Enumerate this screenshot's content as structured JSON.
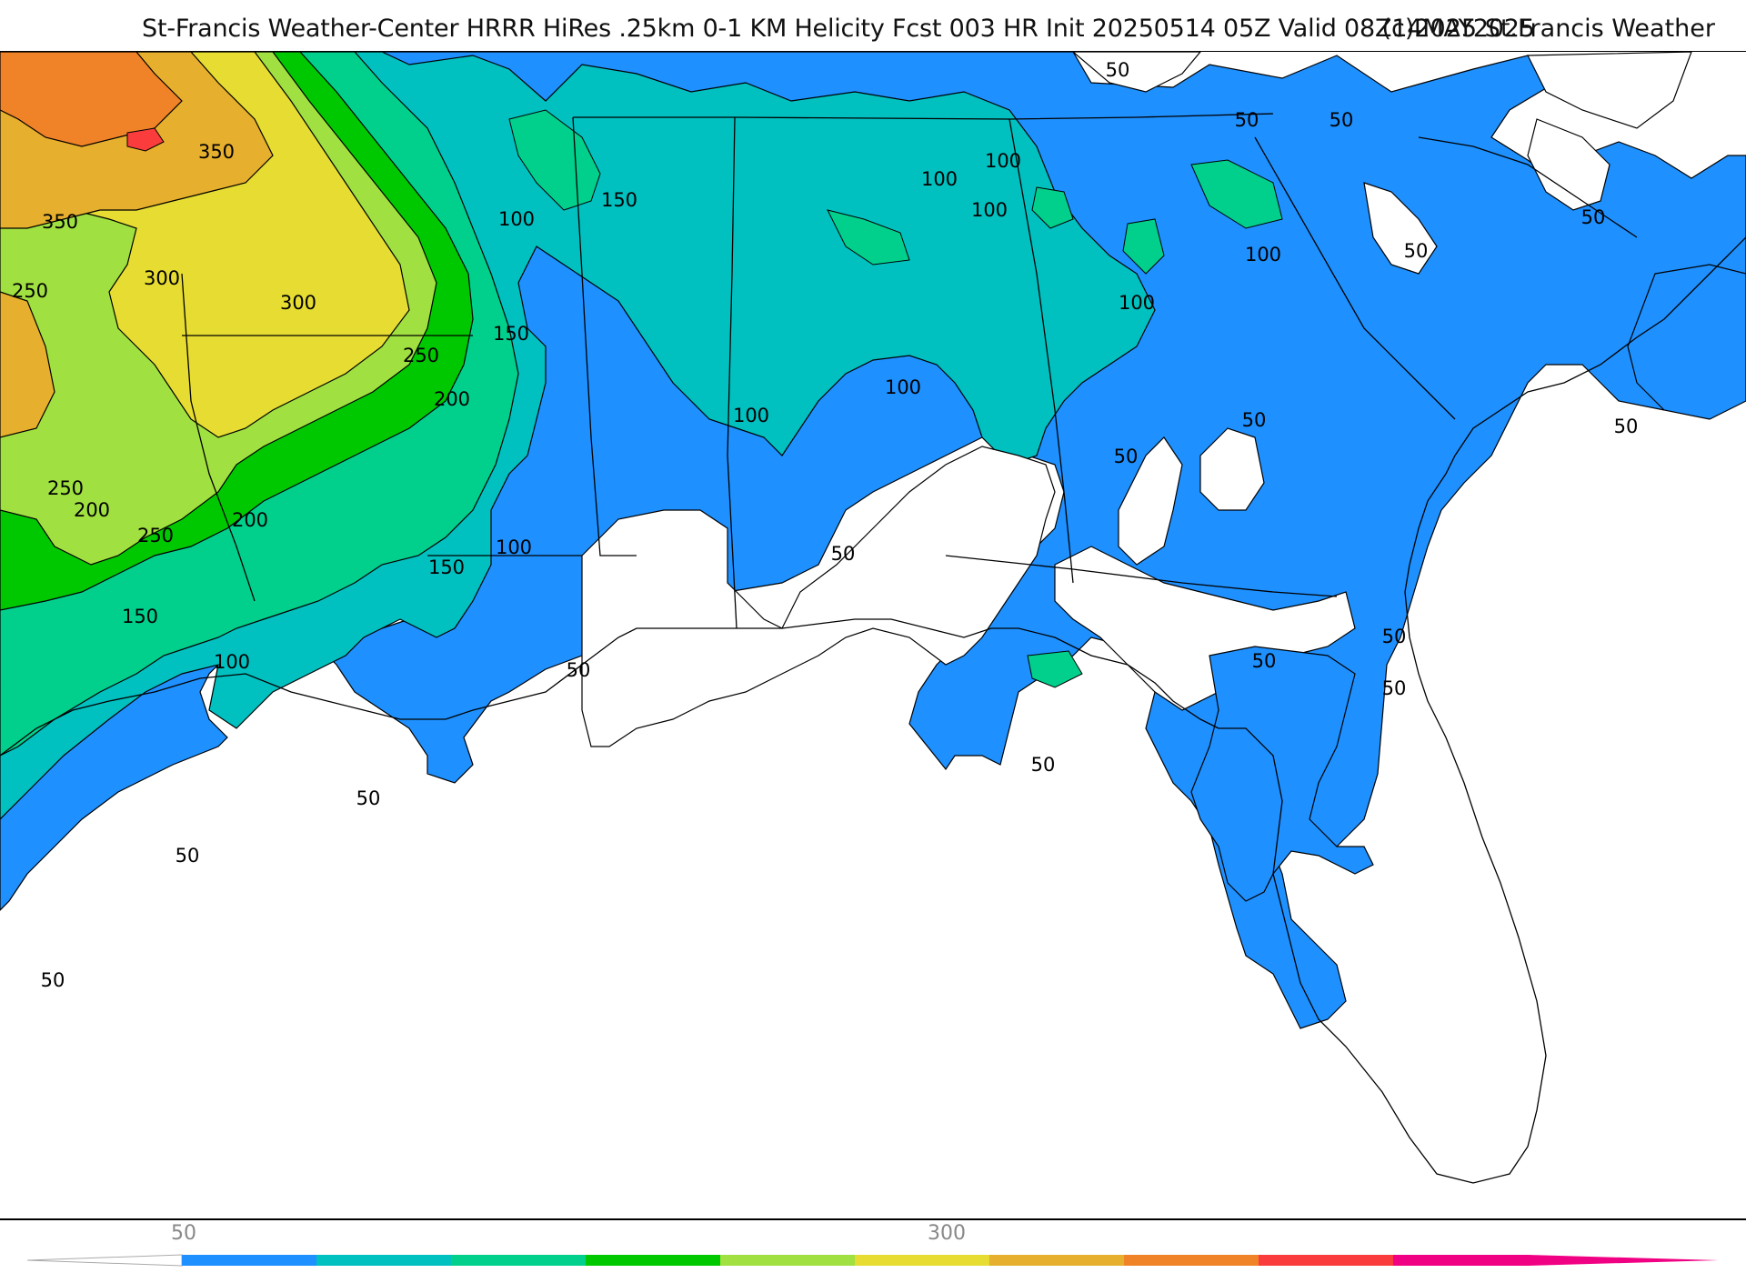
{
  "header": {
    "title": "St-Francis Weather-Center HRRR HiRes .25km 0-1 KM Helicity Fcst 003 HR Init 20250514 05Z  Valid 08Z14MAY2025",
    "copyright": "(c)2025 St.Francis Weather"
  },
  "map": {
    "field": "0-1 KM Helicity",
    "contour_labels": [
      {
        "text": "350"
      },
      {
        "text": "350"
      },
      {
        "text": "300"
      },
      {
        "text": "300"
      },
      {
        "text": "250"
      },
      {
        "text": "250"
      },
      {
        "text": "250"
      },
      {
        "text": "250"
      },
      {
        "text": "200"
      },
      {
        "text": "200"
      },
      {
        "text": "200"
      },
      {
        "text": "150"
      },
      {
        "text": "150"
      },
      {
        "text": "150"
      },
      {
        "text": "150"
      },
      {
        "text": "100"
      },
      {
        "text": "100"
      },
      {
        "text": "100"
      },
      {
        "text": "100"
      },
      {
        "text": "100"
      },
      {
        "text": "100"
      },
      {
        "text": "100"
      },
      {
        "text": "100"
      },
      {
        "text": "100"
      },
      {
        "text": "100"
      },
      {
        "text": "50"
      },
      {
        "text": "50"
      },
      {
        "text": "50"
      },
      {
        "text": "50"
      },
      {
        "text": "50"
      },
      {
        "text": "50"
      },
      {
        "text": "50"
      },
      {
        "text": "50"
      },
      {
        "text": "50"
      },
      {
        "text": "50"
      },
      {
        "text": "50"
      },
      {
        "text": "50"
      },
      {
        "text": "50"
      },
      {
        "text": "50"
      },
      {
        "text": "50"
      },
      {
        "text": "50"
      },
      {
        "text": "50"
      }
    ],
    "colors": {
      "c50": "#1e90ff",
      "c100": "#00c0c0",
      "c150": "#00d08c",
      "c200": "#00c800",
      "c250": "#a0e040",
      "c300": "#e6dc32",
      "c350": "#e6af2d",
      "c400": "#f08228",
      "c450": "#fa3c3c",
      "c500": "#f00082"
    }
  },
  "colorbar": {
    "tick_labels": [
      "50",
      "300"
    ],
    "colors": [
      "#1e90ff",
      "#00c0c0",
      "#00d08c",
      "#00c800",
      "#a0e040",
      "#e6dc32",
      "#e6af2d",
      "#f08228",
      "#fa3c3c",
      "#f00082"
    ]
  }
}
